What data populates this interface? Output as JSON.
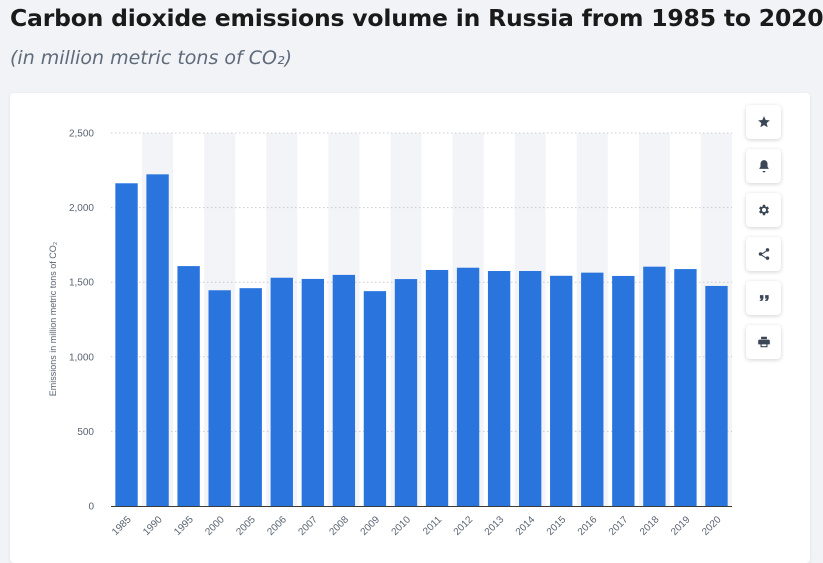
{
  "header": {
    "title": "Carbon dioxide emissions volume in Russia from 1985 to 2020",
    "subtitle": "(in million metric tons of CO₂)"
  },
  "toolbar": {
    "buttons": [
      {
        "icon": "star-icon"
      },
      {
        "icon": "bell-icon"
      },
      {
        "icon": "gear-icon"
      },
      {
        "icon": "share-icon"
      },
      {
        "icon": "quote-icon"
      },
      {
        "icon": "print-icon"
      }
    ]
  },
  "colors": {
    "bar": "#2a74de",
    "band": "#f3f4f7",
    "grid": "#c8ccd2"
  },
  "chart_data": {
    "type": "bar",
    "title": "",
    "xlabel": "",
    "ylabel": "Emissions in million metric tons of CO₂",
    "ylim": [
      0,
      2500
    ],
    "yticks": [
      0,
      500,
      1000,
      1500,
      2000,
      2500
    ],
    "ytick_labels": [
      "0",
      "500",
      "1,000",
      "1,500",
      "2,000",
      "2,500"
    ],
    "grid": true,
    "categories": [
      "1985",
      "1990",
      "1995",
      "2000",
      "2005",
      "2006",
      "2007",
      "2008",
      "2009",
      "2010",
      "2011",
      "2012",
      "2013",
      "2014",
      "2015",
      "2016",
      "2017",
      "2018",
      "2019",
      "2020"
    ],
    "values": [
      2163,
      2223,
      1608,
      1446,
      1460,
      1530,
      1522,
      1549,
      1440,
      1521,
      1582,
      1597,
      1575,
      1575,
      1543,
      1564,
      1542,
      1604,
      1588,
      1475
    ]
  }
}
